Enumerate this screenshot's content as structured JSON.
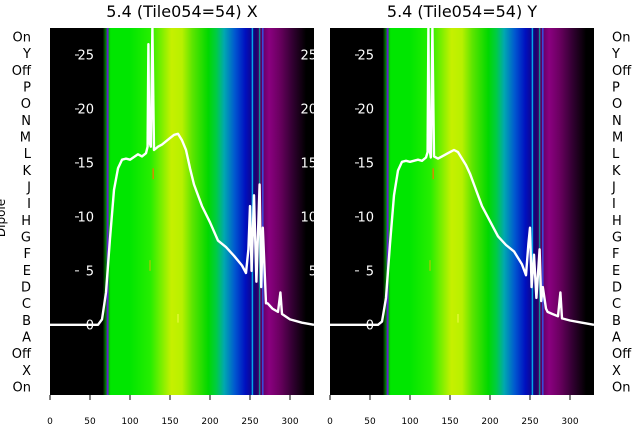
{
  "figure": {
    "ylabel": "Dipole"
  },
  "categories": [
    "On",
    "Y",
    "Off",
    "P",
    "O",
    "N",
    "M",
    "L",
    "K",
    "J",
    "I",
    "H",
    "G",
    "F",
    "E",
    "D",
    "C",
    "B",
    "A",
    "Off",
    "X",
    "On"
  ],
  "chart_data": [
    {
      "type": "heatmap",
      "title": "5.4 (Tile054=54) X",
      "xlabel": "",
      "ylabel": "Dipole",
      "x_ticks": [
        0,
        50,
        100,
        150,
        200,
        250,
        300
      ],
      "xlim": [
        0,
        330
      ],
      "y_ticks": [
        0,
        5,
        10,
        15,
        20,
        25
      ],
      "ylim": [
        -6.5,
        27.5
      ],
      "grid": false,
      "series": [
        {
          "type": "line",
          "x": [
            0,
            60,
            65,
            70,
            75,
            80,
            85,
            90,
            95,
            100,
            110,
            115,
            120,
            122,
            123,
            124,
            126,
            128,
            130,
            135,
            140,
            150,
            155,
            160,
            165,
            170,
            175,
            180,
            190,
            200,
            210,
            220,
            230,
            240,
            245,
            248,
            250,
            252,
            255,
            258,
            262,
            264,
            266,
            270,
            272,
            278,
            285,
            288,
            290,
            300,
            315,
            330
          ],
          "y": [
            0,
            0,
            0.5,
            3,
            8,
            12.5,
            14.5,
            15.3,
            15.4,
            15.3,
            15.8,
            15.6,
            15.9,
            16.5,
            26,
            17,
            16.5,
            27.5,
            16.2,
            16.5,
            16.7,
            17.3,
            17.6,
            17.7,
            17.1,
            16.2,
            14.5,
            13,
            11,
            9.5,
            7.8,
            7.2,
            6.4,
            5.5,
            4.8,
            7,
            11,
            5,
            12,
            4,
            13,
            3.5,
            9,
            2,
            2,
            1.5,
            1.2,
            3,
            1,
            0.5,
            0.2,
            0
          ]
        }
      ]
    },
    {
      "type": "heatmap",
      "title": "5.4 (Tile054=54) Y",
      "xlabel": "",
      "ylabel": "",
      "x_ticks": [
        0,
        50,
        100,
        150,
        200,
        250,
        300
      ],
      "xlim": [
        0,
        330
      ],
      "y_ticks": [
        0,
        5,
        10,
        15,
        20,
        25
      ],
      "ylim": [
        -6.5,
        27.5
      ],
      "grid": false,
      "series": [
        {
          "type": "line",
          "x": [
            0,
            60,
            65,
            70,
            75,
            80,
            85,
            90,
            95,
            100,
            110,
            115,
            120,
            122,
            123,
            124,
            126,
            128,
            130,
            135,
            140,
            150,
            155,
            160,
            165,
            170,
            175,
            180,
            190,
            200,
            210,
            220,
            230,
            240,
            245,
            248,
            250,
            252,
            255,
            258,
            262,
            264,
            266,
            270,
            272,
            278,
            285,
            288,
            290,
            300,
            315,
            330
          ],
          "y": [
            0,
            0,
            0.3,
            2.5,
            7.5,
            12,
            14.3,
            15.1,
            15.2,
            15.1,
            15.3,
            15.2,
            15.5,
            16,
            27.5,
            16.5,
            15.5,
            27.5,
            15.6,
            15.4,
            15.6,
            16,
            16.2,
            16,
            15.4,
            14.8,
            14,
            13,
            11,
            9.6,
            8.2,
            7.4,
            6.8,
            5.6,
            4.6,
            7.5,
            9,
            3.5,
            6.5,
            2.5,
            7,
            2.2,
            3.5,
            1.5,
            1.2,
            1,
            0.8,
            3,
            0.6,
            0.4,
            0.2,
            0
          ]
        }
      ]
    }
  ]
}
